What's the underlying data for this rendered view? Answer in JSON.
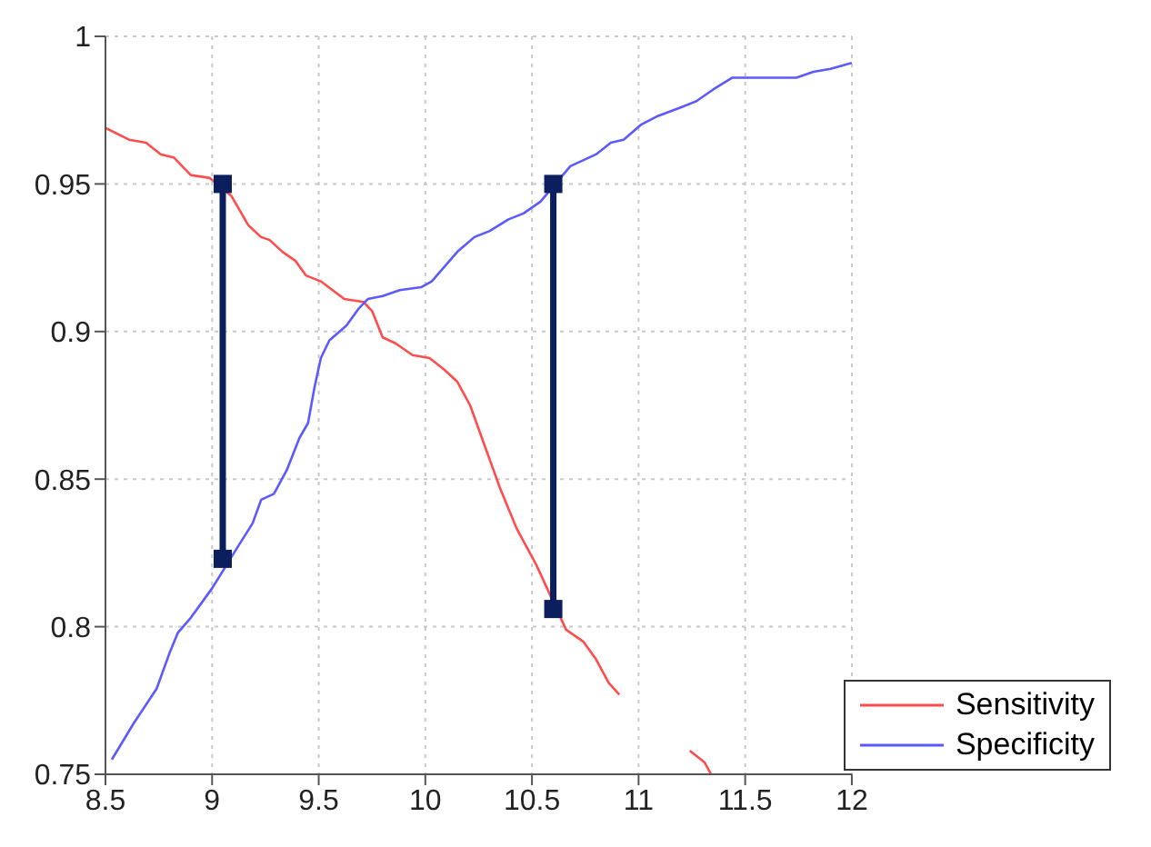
{
  "chart_data": {
    "type": "line",
    "xlim": [
      8.5,
      12
    ],
    "xticks": [
      8.5,
      9,
      9.5,
      10,
      10.5,
      11,
      11.5,
      12
    ],
    "ylim": [
      0.75,
      1
    ],
    "yticks": [
      0.75,
      0.8,
      0.85,
      0.9,
      0.95,
      1
    ],
    "grid": true,
    "legend": "bottom right",
    "marker": "none",
    "line_style": "solid",
    "series": [
      {
        "name": "Sensitivity",
        "color": "#ff4c4c",
        "x": [
          8.5,
          8.61,
          8.69,
          8.76,
          8.82,
          8.9,
          8.99,
          9.09,
          9.17,
          9.23,
          9.27,
          9.33,
          9.39,
          9.44,
          9.51,
          9.62,
          9.71,
          9.75,
          9.8,
          9.86,
          9.94,
          10.02,
          10.09,
          10.15,
          10.21,
          10.29,
          10.35,
          10.43,
          10.52,
          10.66,
          10.74,
          10.8,
          10.86,
          10.91,
          11.05,
          11.24,
          11.31,
          11.34
        ],
        "values": [
          0.969,
          0.965,
          0.964,
          0.96,
          0.959,
          0.953,
          0.952,
          0.946,
          0.936,
          0.932,
          0.931,
          0.927,
          0.924,
          0.919,
          0.917,
          0.911,
          0.91,
          0.907,
          0.898,
          0.896,
          0.892,
          0.891,
          0.887,
          0.883,
          0.875,
          0.859,
          0.847,
          0.833,
          0.821,
          0.799,
          0.795,
          0.789,
          0.781,
          0.777,
          null,
          0.758,
          0.754,
          0.75
        ]
      },
      {
        "name": "Specificity",
        "color": "#5a5aff",
        "x": [
          8.53,
          8.63,
          8.74,
          8.8,
          8.84,
          8.9,
          8.95,
          9.0,
          9.12,
          9.19,
          9.23,
          9.29,
          9.35,
          9.41,
          9.45,
          9.48,
          9.51,
          9.55,
          9.63,
          9.69,
          9.73,
          9.8,
          9.88,
          9.98,
          10.03,
          10.09,
          10.15,
          10.23,
          10.3,
          10.39,
          10.46,
          10.54,
          10.68,
          10.8,
          10.87,
          10.93,
          11.01,
          11.09,
          11.2,
          11.27,
          11.35,
          11.44,
          11.52,
          11.74,
          11.82,
          11.9,
          11.95,
          12.0
        ],
        "values": [
          0.755,
          0.767,
          0.779,
          0.791,
          0.798,
          0.803,
          0.808,
          0.813,
          0.827,
          0.835,
          0.843,
          0.845,
          0.853,
          0.864,
          0.869,
          0.881,
          0.891,
          0.897,
          0.902,
          0.908,
          0.911,
          0.912,
          0.914,
          0.915,
          0.917,
          0.922,
          0.927,
          0.932,
          0.934,
          0.938,
          0.94,
          0.944,
          0.956,
          0.96,
          0.964,
          0.965,
          0.97,
          0.973,
          0.976,
          0.978,
          0.982,
          0.986,
          0.986,
          0.986,
          0.988,
          0.989,
          0.99,
          0.991
        ]
      },
      {
        "color": "#0b1f5e",
        "x": [
          9.05,
          9.05
        ],
        "values": [
          0.823,
          0.95
        ],
        "marker": "square"
      },
      {
        "color": "#0b1f5e",
        "x": [
          10.6,
          10.6
        ],
        "values": [
          0.806,
          0.95
        ],
        "marker": "square"
      }
    ]
  }
}
